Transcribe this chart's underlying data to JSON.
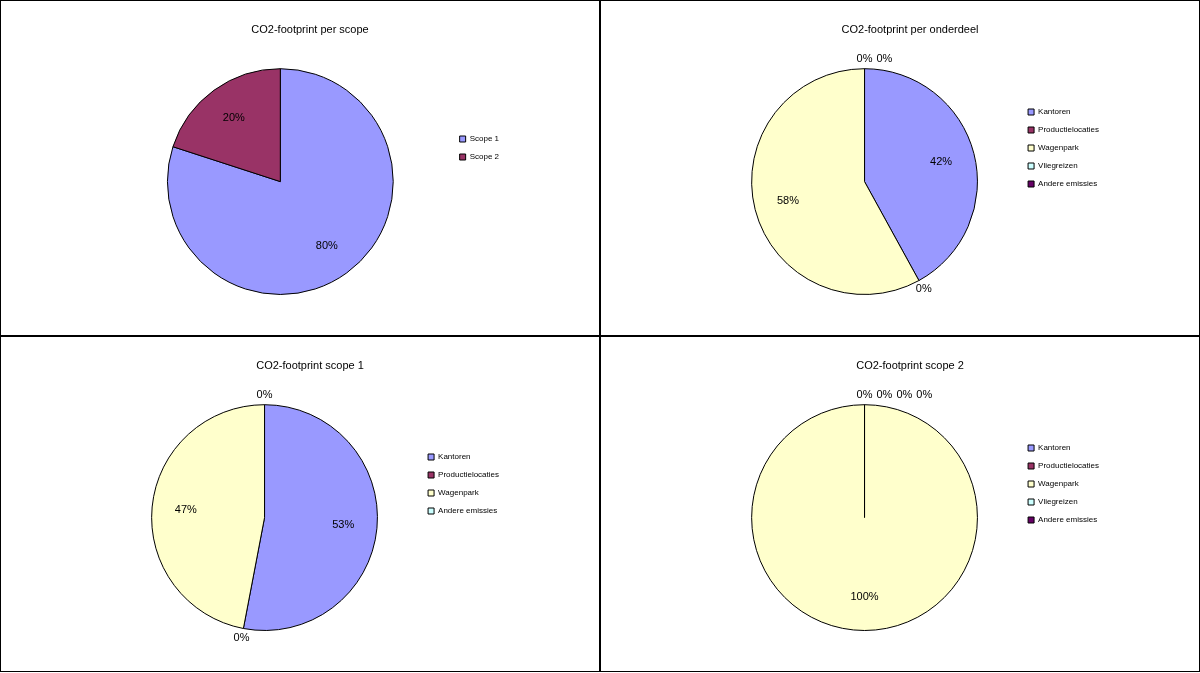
{
  "chart_data": [
    {
      "type": "pie",
      "title": "CO2-footprint per scope",
      "categories": [
        "Scope 1",
        "Scope 2"
      ],
      "values": [
        80,
        20
      ],
      "value_labels": [
        "80%",
        "20%"
      ],
      "colors": [
        "#9999ff",
        "#993366"
      ],
      "legend": "right"
    },
    {
      "type": "pie",
      "title": "CO2-footprint per onderdeel",
      "categories": [
        "Kantoren",
        "Productielocaties",
        "Wagenpark",
        "Vliegreizen",
        "Andere emissies"
      ],
      "values": [
        42,
        0,
        58,
        0,
        0
      ],
      "value_labels": [
        "42%",
        "0%",
        "58%",
        "0%",
        "0%"
      ],
      "colors": [
        "#9999ff",
        "#993366",
        "#ffffcc",
        "#ccffff",
        "#660066"
      ],
      "legend": "right"
    },
    {
      "type": "pie",
      "title": "CO2-footprint scope 1",
      "categories": [
        "Kantoren",
        "Productielocaties",
        "Wagenpark",
        "Andere emissies"
      ],
      "values": [
        53,
        0,
        47,
        0
      ],
      "value_labels": [
        "53%",
        "0%",
        "47%",
        "0%"
      ],
      "colors": [
        "#9999ff",
        "#993366",
        "#ffffcc",
        "#ccffff"
      ],
      "legend": "right"
    },
    {
      "type": "pie",
      "title": "CO2-footprint scope 2",
      "categories": [
        "Kantoren",
        "Productielocaties",
        "Wagenpark",
        "Vliegreizen",
        "Andere emissies"
      ],
      "values": [
        0,
        0,
        100,
        0,
        0
      ],
      "value_labels": [
        "0%",
        "0%",
        "100%",
        "0%",
        "0%"
      ],
      "colors": [
        "#9999ff",
        "#993366",
        "#ffffcc",
        "#ccffff",
        "#660066"
      ],
      "legend": "right"
    }
  ]
}
